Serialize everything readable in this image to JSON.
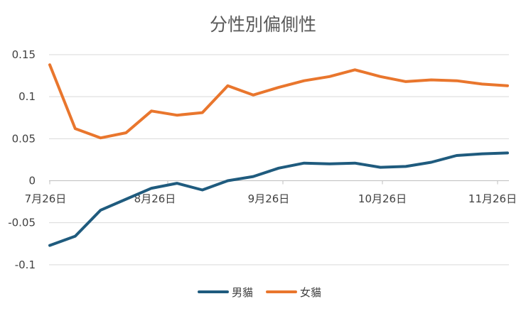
{
  "chart_data": {
    "type": "line",
    "title": "分性別偏側性",
    "xlabel": "",
    "ylabel": "",
    "x_tick_labels": [
      "7月26日",
      "8月26日",
      "9月26日",
      "10月26日",
      "11月26日"
    ],
    "y_tick_labels": [
      "0.15",
      "0.1",
      "0.05",
      "0",
      "-0.05",
      "-0.1"
    ],
    "ylim": [
      -0.1,
      0.15
    ],
    "grid": "horizontal",
    "legend_position": "bottom",
    "x": [
      "7/26",
      "8/2",
      "8/9",
      "8/16",
      "8/23",
      "8/30",
      "9/6",
      "9/13",
      "9/20",
      "9/27",
      "10/4",
      "10/11",
      "10/18",
      "10/25",
      "11/1",
      "11/8",
      "11/15",
      "11/22",
      "11/29"
    ],
    "series": [
      {
        "name": "男貓",
        "color": "#1f5b7e",
        "values": [
          -0.077,
          -0.066,
          -0.035,
          -0.022,
          -0.009,
          -0.003,
          -0.011,
          0.0,
          0.005,
          0.015,
          0.021,
          0.02,
          0.021,
          0.016,
          0.017,
          0.022,
          0.03,
          0.032,
          0.033
        ]
      },
      {
        "name": "女貓",
        "color": "#e9762d",
        "values": [
          0.138,
          0.062,
          0.051,
          0.057,
          0.083,
          0.078,
          0.081,
          0.113,
          0.102,
          0.111,
          0.119,
          0.124,
          0.132,
          0.124,
          0.118,
          0.12,
          0.119,
          0.115,
          0.113
        ]
      }
    ]
  }
}
